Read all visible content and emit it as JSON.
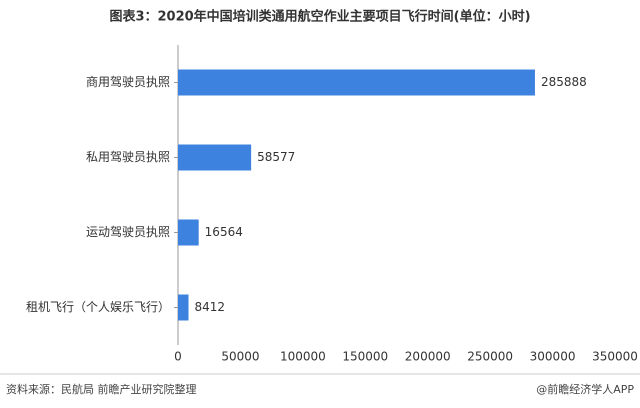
{
  "chart_data": {
    "type": "bar",
    "orientation": "horizontal",
    "title": "图表3：2020年中国培训类通用航空作业主要项目飞行时间(单位：小时)",
    "categories": [
      "商用驾驶员执照",
      "私用驾驶员执照",
      "运动驾驶员执照",
      "租机飞行（个人娱乐飞行）"
    ],
    "values": [
      285888,
      58577,
      16564,
      8412
    ],
    "color": "#3e82e0",
    "xlim": [
      0,
      350000
    ],
    "xticks": [
      0,
      50000,
      100000,
      150000,
      200000,
      250000,
      300000,
      350000
    ],
    "source": "资料来源：民航局 前瞻产业研究院整理",
    "credit": "@前瞻经济学人APP"
  }
}
